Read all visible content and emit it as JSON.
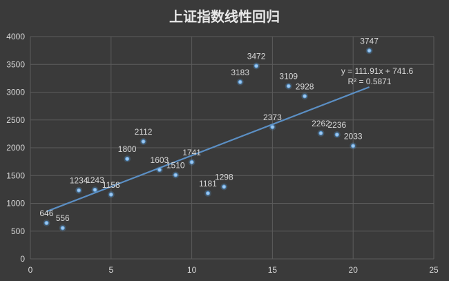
{
  "chart_data": {
    "type": "scatter",
    "title": "上证指数线性回归",
    "xlabel": "",
    "ylabel": "",
    "xlim": [
      0,
      25
    ],
    "ylim": [
      0,
      4000
    ],
    "x_ticks": [
      "0",
      "5",
      "10",
      "15",
      "20",
      "25"
    ],
    "y_ticks": [
      "0",
      "500",
      "1000",
      "1500",
      "2000",
      "2500",
      "3000",
      "3500",
      "4000"
    ],
    "grid": true,
    "series": [
      {
        "x": [
          1,
          2,
          3,
          4,
          5,
          6,
          7,
          8,
          9,
          10,
          11,
          12,
          13,
          14,
          15,
          16,
          17,
          18,
          19,
          20,
          21
        ],
        "values": [
          646,
          556,
          1234,
          1243,
          1158,
          1800,
          2112,
          1603,
          1510,
          1741,
          1181,
          1298,
          3183,
          3472,
          2373,
          3109,
          2928,
          2262,
          2236,
          2033,
          3747
        ],
        "labels": [
          "646",
          "556",
          "1234",
          "1243",
          "1158",
          "1800",
          "2112",
          "1603",
          "1510",
          "1741",
          "1181",
          "1298",
          "3183",
          "3472",
          "2373",
          "3109",
          "2928",
          "2262",
          "2236",
          "2033",
          "3747"
        ],
        "color": "#5b9bd5"
      }
    ],
    "trendline": {
      "type": "linear",
      "slope": 111.91,
      "intercept": 741.6,
      "x_range": [
        1,
        21
      ],
      "equation": "y = 111.91x + 741.6",
      "r_squared": "R² = 0.5871",
      "color": "#5b8fc4"
    },
    "colors": {
      "background": "#3a3a3a",
      "grid": "#5c5c5c",
      "text": "#d9d9d9",
      "title": "#e8e8e8"
    }
  }
}
